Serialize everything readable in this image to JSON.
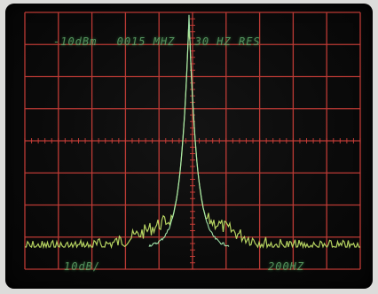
{
  "screen": {
    "ref_level": "-10dBm",
    "center_freq": "0015 MHZ",
    "resolution_bw": "30 HZ RES",
    "vertical_scale": "10dB/",
    "horizontal_scale": "200HZ"
  },
  "colors": {
    "grid": "#d0403a",
    "trace": "#9fe0a0",
    "text": "#5fa86a",
    "background": "#0a0a0a"
  }
}
